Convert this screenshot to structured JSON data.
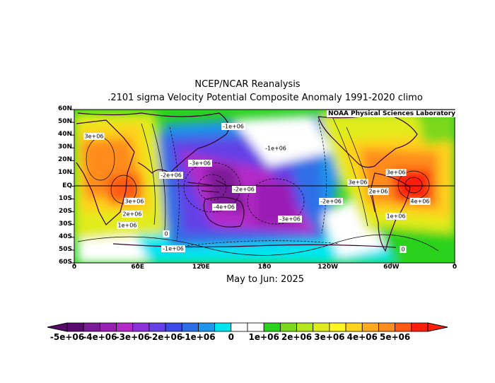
{
  "title": "NCEP/NCAR Reanalysis",
  "subtitle": ".2101 sigma Velocity Potential  Composite Anomaly 1991-2020 climo",
  "period": "May to Jun: 2025",
  "credit": "NOAA Physical Sciences Laboratory",
  "lat_labels": [
    "60N",
    "50N",
    "40N",
    "30N",
    "20N",
    "10N",
    "EQ",
    "10S",
    "20S",
    "30S",
    "40S",
    "50S",
    "60S"
  ],
  "lon_labels": [
    "0",
    "60E",
    "120E",
    "180",
    "120W",
    "60W",
    "0"
  ],
  "contour_labels": [
    {
      "text": "3e+06"
    },
    {
      "text": "-2e+06"
    },
    {
      "text": "-3e+06"
    },
    {
      "text": "-1e+06"
    },
    {
      "text": "-1e+06"
    },
    {
      "text": "-2e+06"
    },
    {
      "text": "-4e+06"
    },
    {
      "text": "-2e+06"
    },
    {
      "text": "3e+06"
    },
    {
      "text": "2e+06"
    },
    {
      "text": "1e+06"
    },
    {
      "text": "0"
    },
    {
      "text": "-1e+06"
    },
    {
      "text": "-3e+06"
    },
    {
      "text": "3e+06"
    },
    {
      "text": "3e+06"
    },
    {
      "text": "2e+06"
    },
    {
      "text": "4e+06"
    },
    {
      "text": "1e+06"
    },
    {
      "text": "0"
    }
  ],
  "colorbar": {
    "labels": [
      "-5e+06",
      "-4e+06",
      "-3e+06",
      "-2e+06",
      "-1e+06",
      "0",
      "1e+06",
      "2e+06",
      "3e+06",
      "4e+06",
      "5e+06"
    ],
    "colors": [
      "#5a0a6e",
      "#7a1a96",
      "#9a1fb4",
      "#b429c8",
      "#8b32dc",
      "#6440e6",
      "#3c4be6",
      "#2d6ee6",
      "#1e96ec",
      "#00e6f0",
      "#ffffff",
      "#ffffff",
      "#2bd21e",
      "#7dd81c",
      "#b4e620",
      "#e1ec1e",
      "#fff520",
      "#ffd21e",
      "#ffaa1e",
      "#ff8c1e",
      "#ff5a14",
      "#ff1e0a"
    ]
  }
}
